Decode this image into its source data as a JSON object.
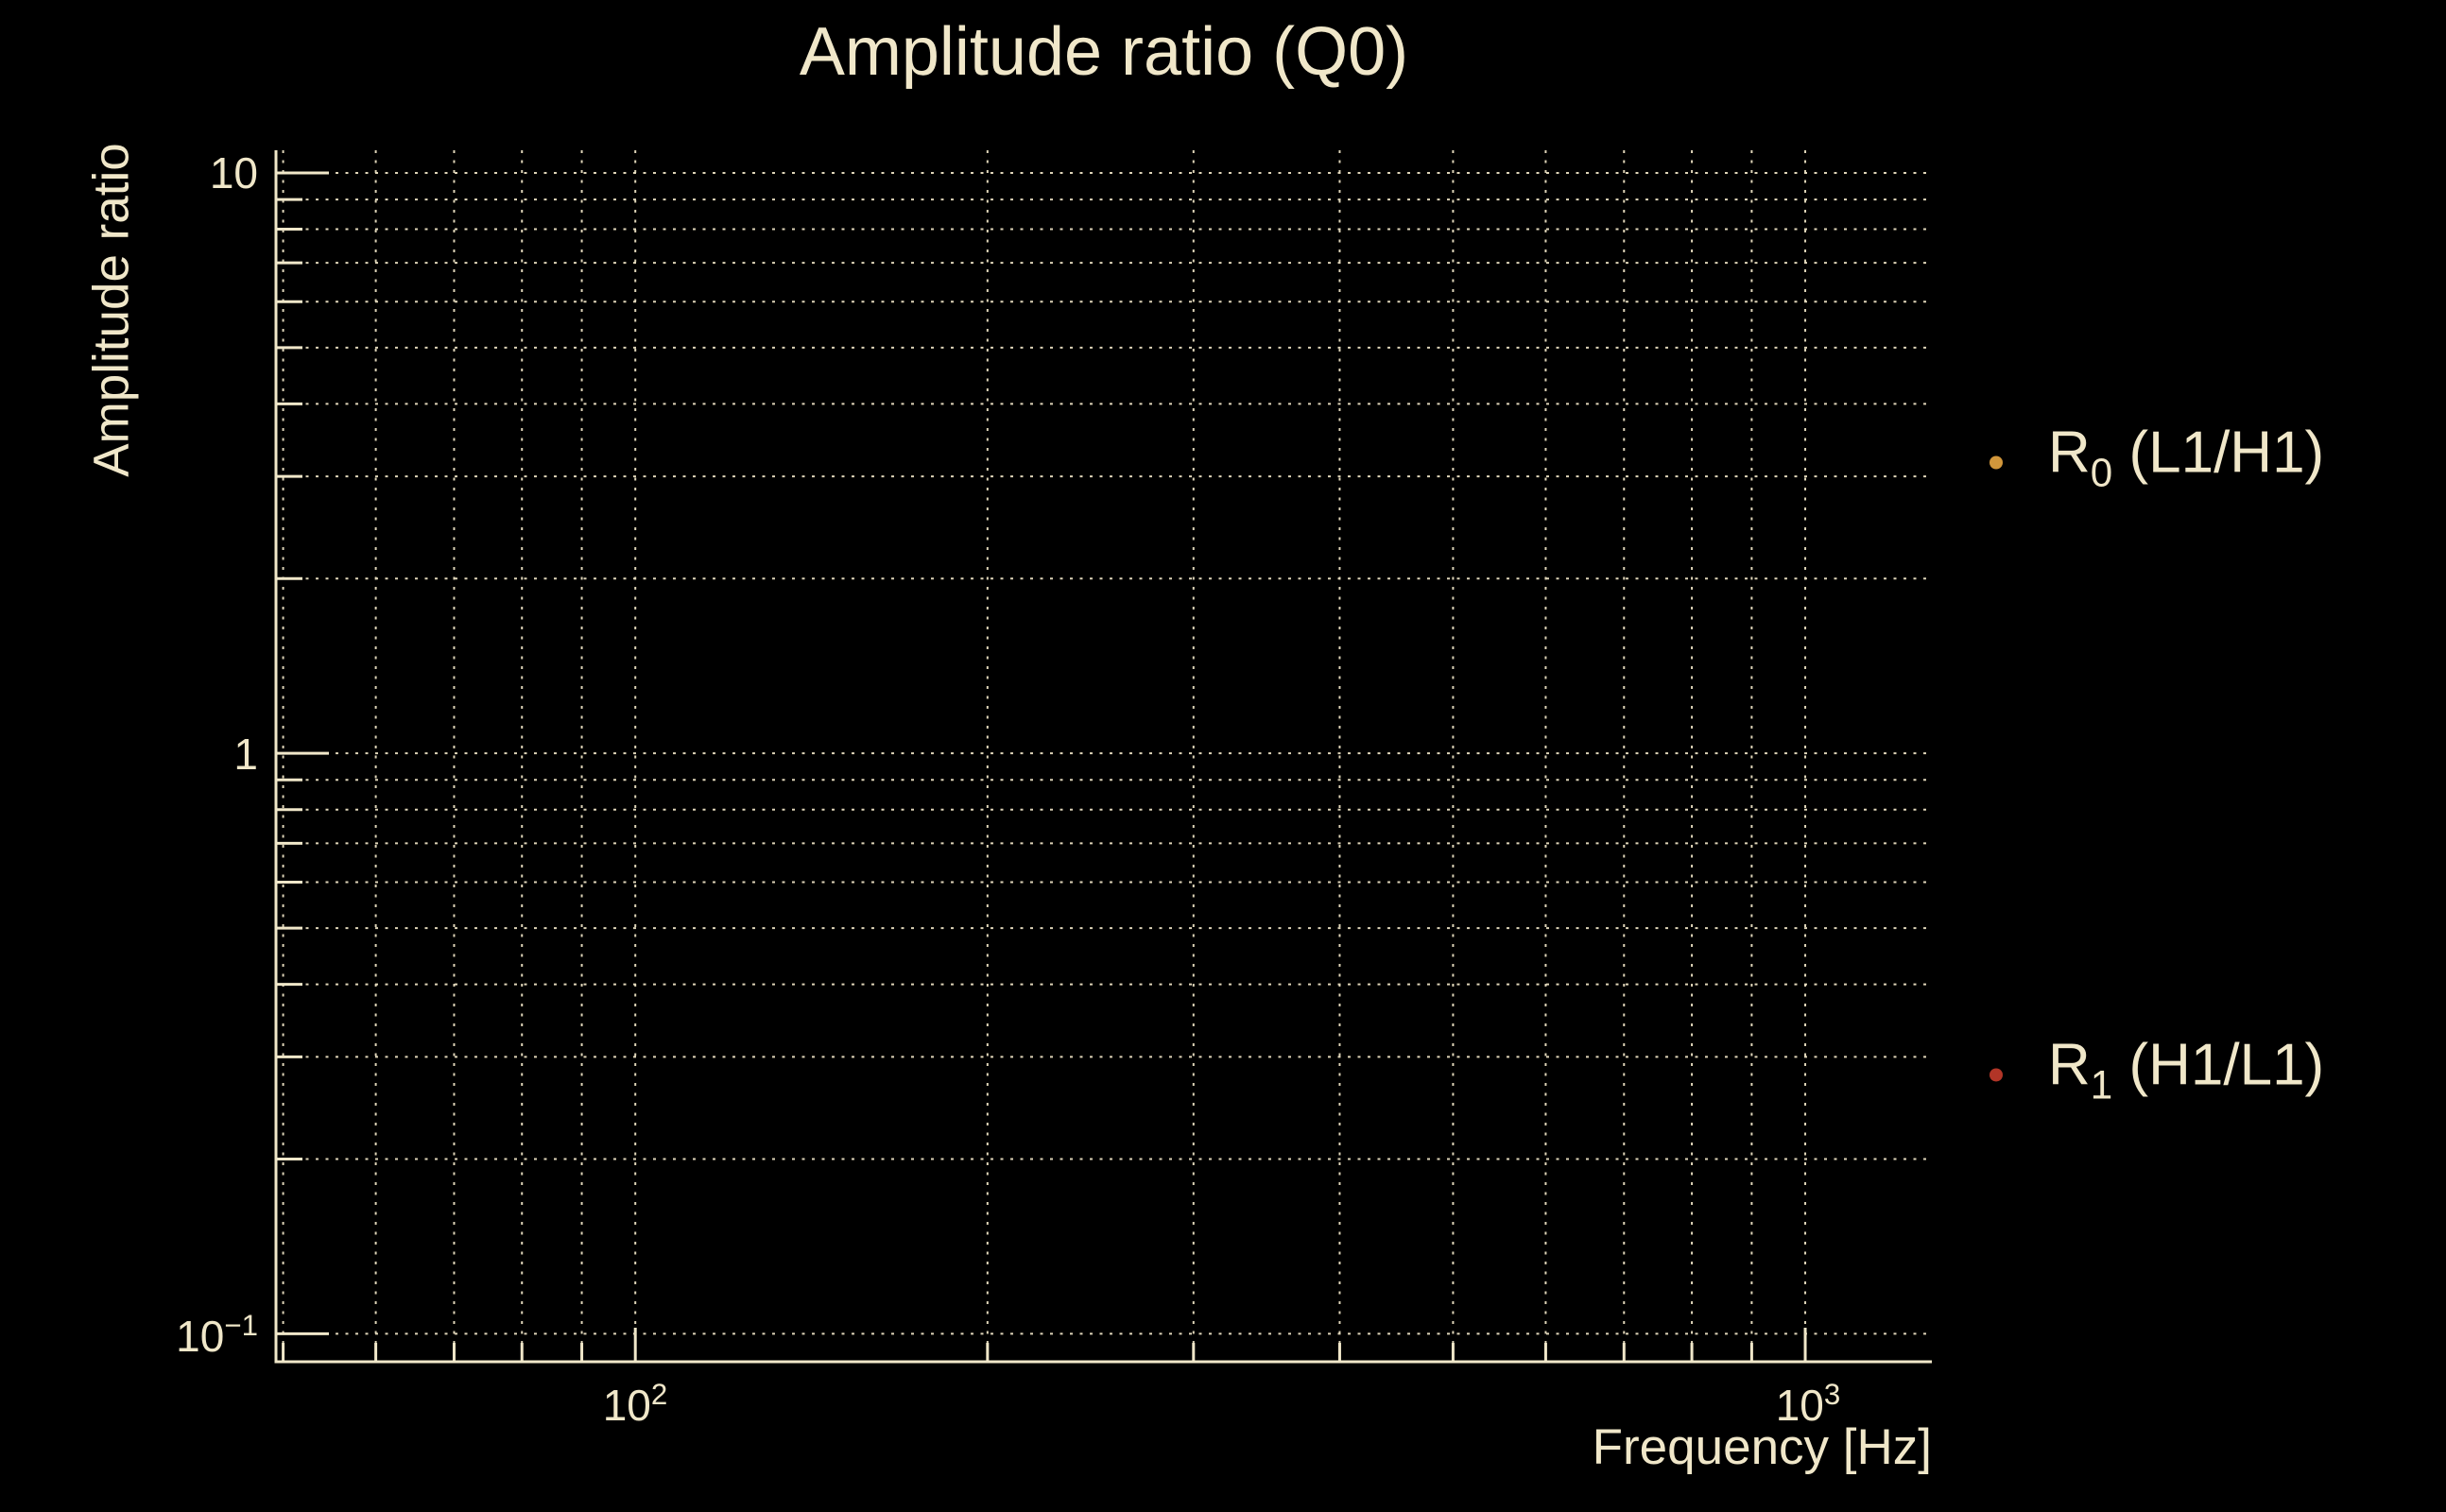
{
  "chart": {
    "title": "Amplitude ratio (Q0)",
    "xlabel": "Frequency [Hz]",
    "ylabel": "Amplitude ratio"
  },
  "chart_data": {
    "type": "scatter",
    "title": "Amplitude ratio (Q0)",
    "xlabel": "Frequency [Hz]",
    "ylabel": "Amplitude ratio",
    "xscale": "log",
    "yscale": "log",
    "xlim": [
      49.3,
      1283
    ],
    "ylim": [
      0.0895,
      10.94
    ],
    "x_major_ticks": [
      100,
      1000
    ],
    "y_major_ticks": [
      10,
      1,
      0.1
    ],
    "x_tick_labels": [
      {
        "value": 100,
        "base": "10",
        "exp": "2"
      },
      {
        "value": 1000,
        "base": "10",
        "exp": "3"
      }
    ],
    "y_tick_labels": [
      {
        "value": 10,
        "base": "10",
        "exp": ""
      },
      {
        "value": 1,
        "base": "1",
        "exp": ""
      },
      {
        "value": 0.1,
        "base": "10",
        "exp": "−1"
      }
    ],
    "grid": "major-and-minor, dotted, both axes",
    "legend_position": "outside-right",
    "series": [
      {
        "name": "R0 (L1/H1)",
        "label_base": "R",
        "label_sub": "0",
        "label_rest": " (L1/H1)",
        "marker": "dot",
        "color": "#d2973b",
        "points": []
      },
      {
        "name": "R1 (H1/L1)",
        "label_base": "R",
        "label_sub": "1",
        "label_rest": " (H1/L1)",
        "marker": "dot",
        "color": "#b23527",
        "points": []
      }
    ]
  },
  "colors": {
    "background": "#000000",
    "text": "#f0e7c9",
    "grid": "#eae0c2",
    "axis": "#f0e7c9",
    "series_r0_marker": "#d2973b",
    "series_r1_marker": "#b23527"
  }
}
